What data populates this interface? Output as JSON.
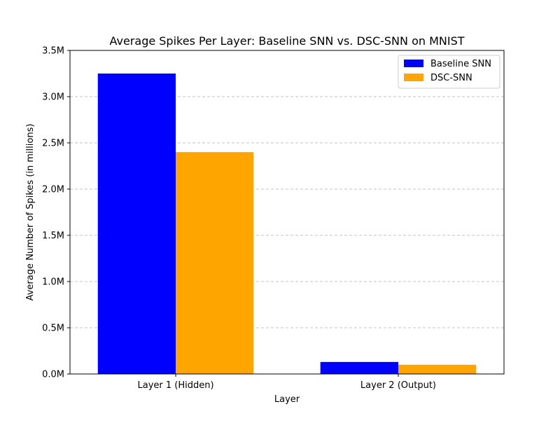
{
  "chart_data": {
    "type": "bar",
    "title": "Average Spikes Per Layer: Baseline SNN vs. DSC-SNN on MNIST",
    "xlabel": "Layer",
    "ylabel": "Average Number of Spikes (in millions)",
    "categories": [
      "Layer 1 (Hidden)",
      "Layer 2 (Output)"
    ],
    "series": [
      {
        "name": "Baseline SNN",
        "color": "#0000ff",
        "values": [
          3.25,
          0.13
        ]
      },
      {
        "name": "DSC-SNN",
        "color": "#ffa500",
        "values": [
          2.4,
          0.1
        ]
      }
    ],
    "ylim": [
      0,
      3.5
    ],
    "yticks": [
      0,
      0.5,
      1.0,
      1.5,
      2.0,
      2.5,
      3.0,
      3.5
    ],
    "ytick_labels": [
      "0.0M",
      "0.5M",
      "1.0M",
      "1.5M",
      "2.0M",
      "2.5M",
      "3.0M",
      "3.5M"
    ],
    "grid": "y-dashed",
    "legend_position": "upper right"
  }
}
